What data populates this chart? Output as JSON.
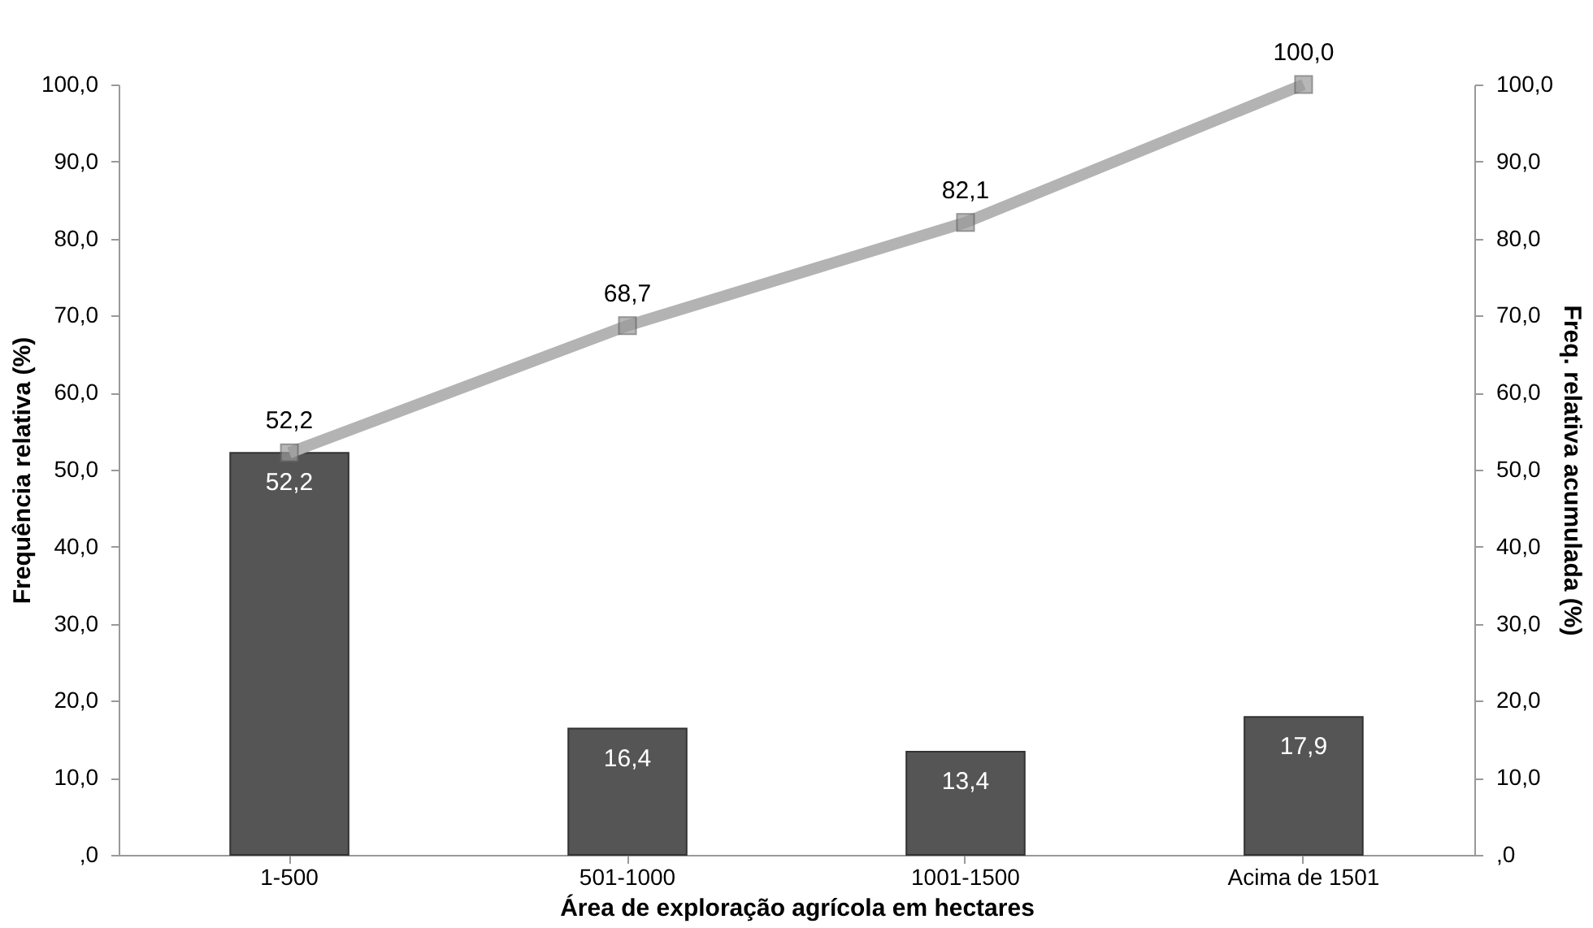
{
  "chart_data": {
    "type": "bar",
    "xlabel": "Área de exploração agrícola em hectares",
    "ylabel": "Frequência relativa (%)",
    "y2label": "Freq. relativa acumulada (%)",
    "categories": [
      "1-500",
      "501-1000",
      "1001-1500",
      "Acima de 1501"
    ],
    "series": [
      {
        "color": "#555555",
        "values": [
          52.2,
          16.4,
          13.4,
          17.9
        ],
        "value_labels": [
          "52,2",
          "16,4",
          "13,4",
          "17,9"
        ]
      },
      {
        "type": "line",
        "axis": "y2",
        "color": "#b3b3b3",
        "marker": "square",
        "values": [
          52.2,
          68.7,
          82.1,
          100.0
        ],
        "value_labels": [
          "52,2",
          "68,7",
          "82,1",
          "100,0"
        ]
      }
    ],
    "ylim": [
      0,
      100
    ],
    "yticks": [
      {
        "value": 0,
        "label": ",0"
      },
      {
        "value": 10,
        "label": "10,0"
      },
      {
        "value": 20,
        "label": "20,0"
      },
      {
        "value": 30,
        "label": "30,0"
      },
      {
        "value": 40,
        "label": "40,0"
      },
      {
        "value": 50,
        "label": "50,0"
      },
      {
        "value": 60,
        "label": "60,0"
      },
      {
        "value": 70,
        "label": "70,0"
      },
      {
        "value": 80,
        "label": "80,0"
      },
      {
        "value": 90,
        "label": "90,0"
      },
      {
        "value": 100,
        "label": "100,0"
      }
    ],
    "y2lim": [
      0,
      100
    ],
    "y2ticks": [
      {
        "value": 0,
        "label": ",0"
      },
      {
        "value": 10,
        "label": "10,0"
      },
      {
        "value": 20,
        "label": "20,0"
      },
      {
        "value": 30,
        "label": "30,0"
      },
      {
        "value": 40,
        "label": "40,0"
      },
      {
        "value": 50,
        "label": "50,0"
      },
      {
        "value": 60,
        "label": "60,0"
      },
      {
        "value": 70,
        "label": "70,0"
      },
      {
        "value": 80,
        "label": "80,0"
      },
      {
        "value": 90,
        "label": "90,0"
      },
      {
        "value": 100,
        "label": "100,0"
      }
    ],
    "grid": false
  }
}
